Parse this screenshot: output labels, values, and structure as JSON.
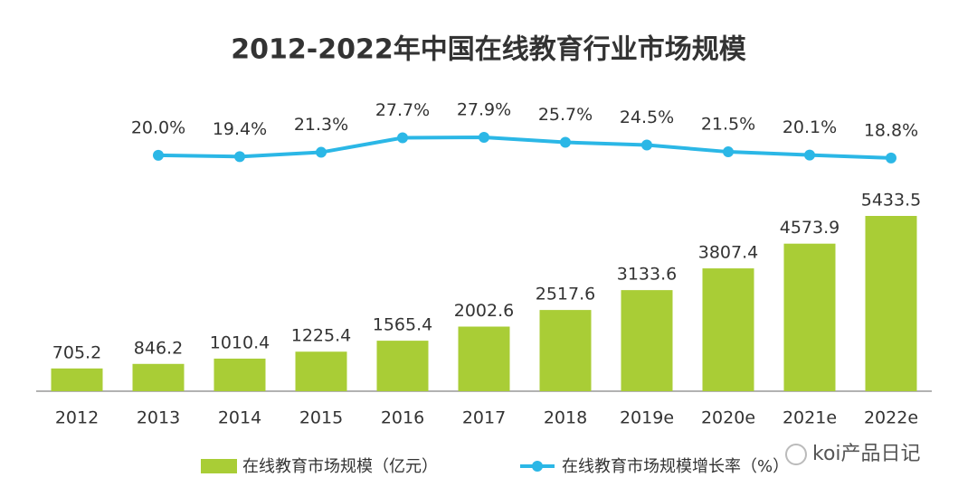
{
  "chart_data": {
    "type": "bar",
    "title": "2012-2022年中国在线教育行业市场规模",
    "categories": [
      "2012",
      "2013",
      "2014",
      "2015",
      "2016",
      "2017",
      "2018",
      "2019e",
      "2020e",
      "2021e",
      "2022e"
    ],
    "series": [
      {
        "name": "在线教育市场规模（亿元）",
        "type": "bar",
        "color": "#a9cd36",
        "values": [
          705.2,
          846.2,
          1010.4,
          1225.4,
          1565.4,
          2002.6,
          2517.6,
          3133.6,
          3807.4,
          4573.9,
          5433.5
        ]
      },
      {
        "name": "在线教育市场规模增长率（%）",
        "type": "line",
        "axis": "y2",
        "color": "#2bb7e6",
        "values": [
          null,
          20.0,
          19.4,
          21.3,
          27.7,
          27.9,
          25.7,
          24.5,
          21.5,
          20.1,
          18.8
        ],
        "value_labels": [
          null,
          "20.0%",
          "19.4%",
          "21.3%",
          "27.7%",
          "27.9%",
          "25.7%",
          "24.5%",
          "21.5%",
          "20.1%",
          "18.8%"
        ]
      }
    ]
  },
  "watermark": "koi产品日记"
}
